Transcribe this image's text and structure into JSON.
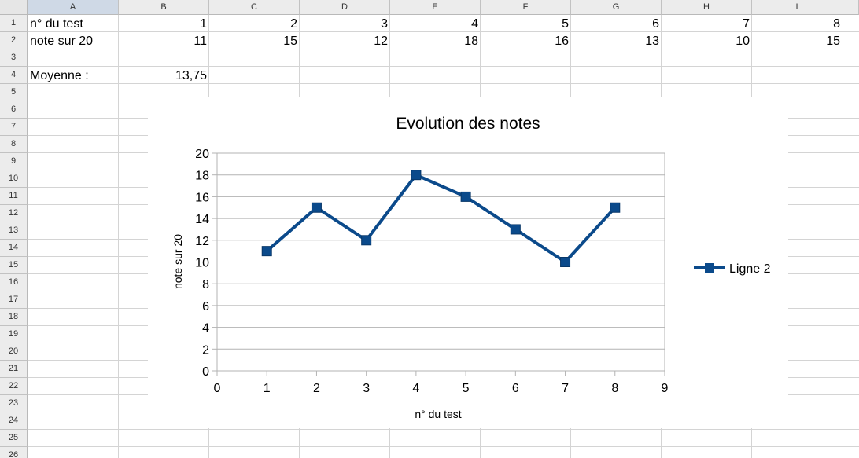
{
  "column_headers": [
    "A",
    "B",
    "C",
    "D",
    "E",
    "F",
    "G",
    "H",
    "I"
  ],
  "row_headers": [
    "1",
    "2",
    "3",
    "4",
    "5",
    "6",
    "7",
    "8",
    "9",
    "10",
    "11",
    "12",
    "13",
    "14",
    "15",
    "16",
    "17",
    "18",
    "19",
    "20",
    "21",
    "22",
    "23",
    "24",
    "25",
    "26"
  ],
  "selected_column": "A",
  "colors": {
    "series": "#0b4a8b",
    "header_bg": "#ececec",
    "selected_header_bg": "#cfd9e6",
    "grid": "#d4d4d4"
  },
  "cells": {
    "A1": "n° du test",
    "A2": "note sur 20",
    "A4": "Moyenne :",
    "B4": "13,75",
    "row1_values": [
      "1",
      "2",
      "3",
      "4",
      "5",
      "6",
      "7",
      "8"
    ],
    "row2_values": [
      "11",
      "15",
      "12",
      "18",
      "16",
      "13",
      "10",
      "15"
    ]
  },
  "chart_data": {
    "type": "line",
    "title": "Evolution des notes",
    "xlabel": "n° du test",
    "ylabel": "note sur 20",
    "xlim": [
      0,
      9
    ],
    "ylim": [
      0,
      20
    ],
    "x_ticks": [
      "0",
      "1",
      "2",
      "3",
      "4",
      "5",
      "6",
      "7",
      "8",
      "9"
    ],
    "y_ticks": [
      "0",
      "2",
      "4",
      "6",
      "8",
      "10",
      "12",
      "14",
      "16",
      "18",
      "20"
    ],
    "series": [
      {
        "name": "Ligne 2",
        "x": [
          1,
          2,
          3,
          4,
          5,
          6,
          7,
          8
        ],
        "values": [
          11,
          15,
          12,
          18,
          16,
          13,
          10,
          15
        ],
        "marker": "square",
        "color": "#0b4a8b"
      }
    ],
    "grid": "horizontal",
    "legend": "right"
  }
}
